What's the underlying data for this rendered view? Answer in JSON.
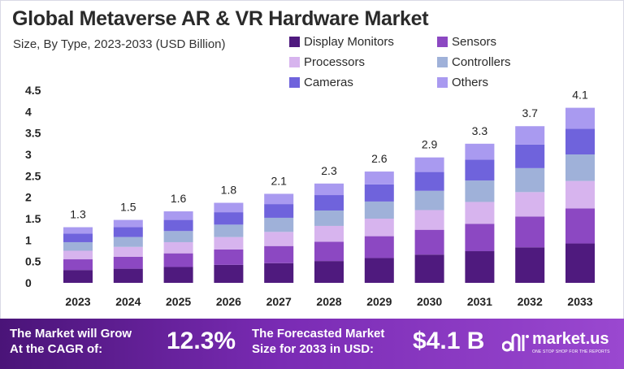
{
  "title": "Global Metaverse AR & VR Hardware Market",
  "subtitle": "Size, By Type, 2023-2033 (USD Billion)",
  "colors": {
    "display_monitors": "#4f1a7e",
    "sensors": "#8c48c2",
    "processors": "#d7b4ee",
    "controllers": "#9fb1d9",
    "cameras": "#6f63dc",
    "others": "#a99af0",
    "footer_start": "#4a1478",
    "footer_end": "#9a48d0"
  },
  "chart_data": {
    "type": "bar",
    "stacked": true,
    "title": "Global Metaverse AR & VR Hardware Market",
    "subtitle": "Size, By Type, 2023-2033 (USD Billion)",
    "categories": [
      "2023",
      "2024",
      "2025",
      "2026",
      "2027",
      "2028",
      "2029",
      "2030",
      "2031",
      "2032",
      "2033"
    ],
    "totals_labels": [
      "1.3",
      "1.5",
      "1.6",
      "1.8",
      "2.1",
      "2.3",
      "2.6",
      "2.9",
      "3.3",
      "3.7",
      "4.1"
    ],
    "yticks": [
      "0",
      "0.5",
      "1",
      "1.5",
      "2",
      "2.5",
      "3",
      "3.5",
      "4",
      "4.5"
    ],
    "ylim": [
      0,
      4.5
    ],
    "grid": false,
    "legend_position": "top-right",
    "series": [
      {
        "name": "Display Monitors",
        "values": [
          0.3,
          0.33,
          0.37,
          0.42,
          0.46,
          0.51,
          0.58,
          0.66,
          0.74,
          0.83,
          0.92
        ]
      },
      {
        "name": "Sensors",
        "values": [
          0.25,
          0.28,
          0.32,
          0.36,
          0.4,
          0.45,
          0.51,
          0.58,
          0.64,
          0.72,
          0.82
        ]
      },
      {
        "name": "Processors",
        "values": [
          0.2,
          0.23,
          0.26,
          0.29,
          0.33,
          0.37,
          0.41,
          0.46,
          0.51,
          0.57,
          0.64
        ]
      },
      {
        "name": "Controllers",
        "values": [
          0.2,
          0.23,
          0.26,
          0.29,
          0.33,
          0.36,
          0.4,
          0.45,
          0.5,
          0.56,
          0.62
        ]
      },
      {
        "name": "Cameras",
        "values": [
          0.2,
          0.23,
          0.26,
          0.29,
          0.32,
          0.36,
          0.4,
          0.44,
          0.49,
          0.55,
          0.6
        ]
      },
      {
        "name": "Others",
        "values": [
          0.15,
          0.17,
          0.2,
          0.22,
          0.24,
          0.27,
          0.3,
          0.34,
          0.37,
          0.43,
          0.49
        ]
      }
    ]
  },
  "footer": {
    "left_line1": "The Market will Grow",
    "left_line2": "At the CAGR of:",
    "cagr": "12.3%",
    "right_line1": "The Forecasted Market",
    "right_line2": "Size for 2033 in USD:",
    "value": "$4.1 B",
    "brand_name": "market.us",
    "brand_tagline": "ONE STOP SHOP FOR THE REPORTS"
  }
}
